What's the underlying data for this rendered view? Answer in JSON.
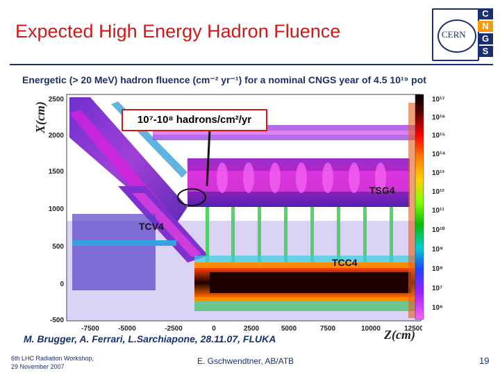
{
  "slide": {
    "title": "Expected High Energy Hadron Fluence",
    "subtitle": "Energetic (> 20 MeV) hadron fluence (cm⁻² yr⁻¹) for a nominal CNGS year of 4.5 10¹⁹ pot",
    "logo_text": "CERN",
    "logo_letters": [
      "C",
      "N",
      "G",
      "S"
    ],
    "author_line": "M. Brugger, A. Ferrari,  L.Sarchiapone, 28.11.07, FLUKA",
    "footer_left_line1": "6th LHC Radiation Workshop,",
    "footer_left_line2": "29 November 2007",
    "footer_center": "E. Gschwendtner, AB/ATB",
    "page_number": "19"
  },
  "plot": {
    "y_axis_label": "X(cm)",
    "x_axis_label": "Z(cm)",
    "y_ticks": [
      "2500",
      "2000",
      "1500",
      "1000",
      "500",
      "0",
      "-500"
    ],
    "x_ticks": [
      "-7500",
      "-5000",
      "-2500",
      "0",
      "2500",
      "5000",
      "7500",
      "10000",
      "12500"
    ],
    "annotation_fluence": "10⁷-10⁸ hadrons/cm²/yr",
    "label_tsg4": "TSG4",
    "label_tcv4": "TCV4",
    "label_tcc4": "TCC4",
    "colorbar_labels": [
      "10¹⁷",
      "10¹⁶",
      "10¹⁵",
      "10¹⁴",
      "10¹³",
      "10¹²",
      "10¹¹",
      "10¹⁰",
      "10⁹",
      "10⁸",
      "10⁷",
      "10⁶"
    ]
  },
  "colors": {
    "title_red": "#d01818",
    "navy": "#1a2f6e",
    "letter_bg": "#1a2f6e"
  }
}
